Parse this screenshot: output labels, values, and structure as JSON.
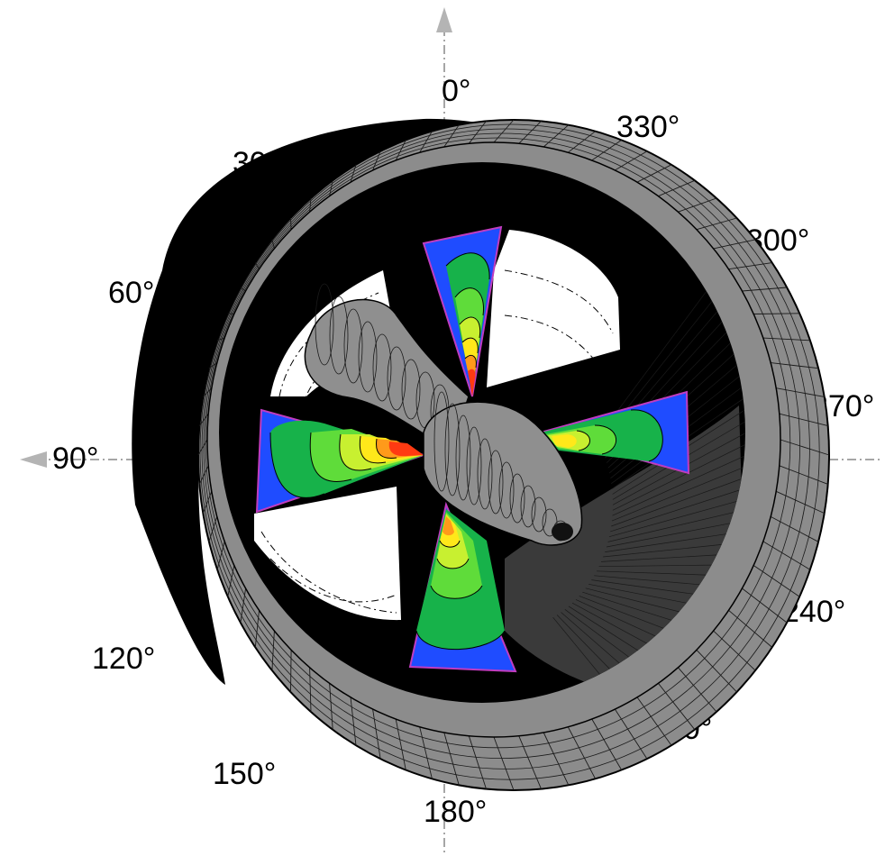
{
  "angle_labels": {
    "a0": "0°",
    "a30": "30°",
    "a60": "60°",
    "a90": "90°",
    "a120": "120°",
    "a150": "150°",
    "a180": "180°",
    "a210": "210°",
    "a240": "240°",
    "a270": "270°",
    "a300": "300°",
    "a330": "330°"
  },
  "colors": {
    "duct_shadow": "#000000",
    "duct_surface": "#8c8c8c",
    "hub_surface": "#8f8f8f",
    "mesh_line": "#1a1a1a",
    "axis": "#b4b4b4",
    "contour_blue": "#1f4cff",
    "contour_green_dark": "#17b24a",
    "contour_green_light": "#5fdc3a",
    "contour_yellow_green": "#c8f030",
    "contour_yellow": "#ffe81a",
    "contour_orange": "#ff9a1a",
    "contour_red": "#ff3a12",
    "blade_edge": "#c03cc0"
  },
  "icons": {
    "axis_arrow_up": "arrow-up-icon",
    "axis_arrow_left": "arrow-left-icon"
  }
}
